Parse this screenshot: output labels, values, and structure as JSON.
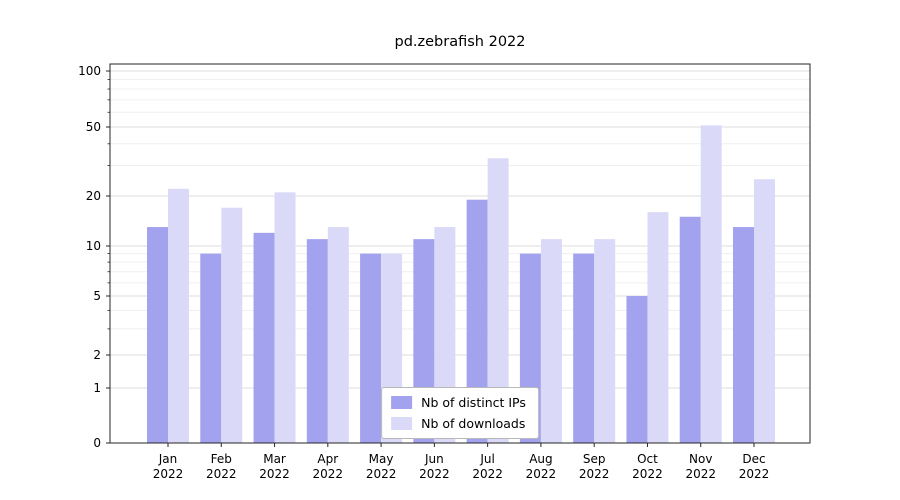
{
  "title": "pd.zebrafish 2022",
  "chart_data": {
    "type": "bar",
    "title": "pd.zebrafish 2022",
    "categories": [
      "Jan",
      "Feb",
      "Mar",
      "Apr",
      "May",
      "Jun",
      "Jul",
      "Aug",
      "Sep",
      "Oct",
      "Nov",
      "Dec"
    ],
    "year_label": "2022",
    "series": [
      {
        "name": "Nb of distinct IPs",
        "color": "#a2a2ee",
        "values": [
          13,
          9,
          12,
          11,
          9,
          11,
          19,
          9,
          9,
          5,
          15,
          13
        ]
      },
      {
        "name": "Nb of downloads",
        "color": "#dadaf8",
        "values": [
          22,
          17,
          21,
          13,
          9,
          13,
          33,
          11,
          11,
          16,
          51,
          25
        ]
      }
    ],
    "yscale": "symlog",
    "yticks": [
      0,
      1,
      2,
      5,
      10,
      20,
      50,
      100
    ],
    "minor_yticks": [
      3,
      4,
      6,
      7,
      8,
      9,
      30,
      40,
      60,
      70,
      80,
      90
    ],
    "ylim": [
      0,
      100
    ],
    "grid": true,
    "legend_position": "lower center",
    "colors": {
      "axis": "#262626",
      "grid_major": "#dedede",
      "grid_minor": "#efefef",
      "legend_border": "#b8b8b8",
      "text": "#000000"
    }
  }
}
